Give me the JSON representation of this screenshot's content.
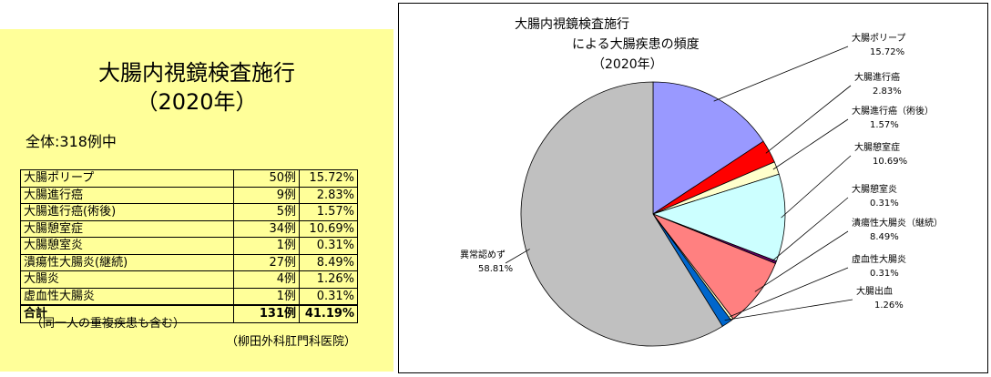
{
  "table_panel": {
    "title": "大腸内視鏡検査施行",
    "subtitle": "（2020年）",
    "summary": "全体:318例中",
    "rows": [
      [
        "大腸ポリープ",
        "50例",
        "15.72%"
      ],
      [
        "大腸進行癌",
        "9例",
        "2.83%"
      ],
      [
        "大腸進行癌(術後)",
        "5例",
        "1.57%"
      ],
      [
        "大腸憩室症",
        "34例",
        "10.69%"
      ],
      [
        "大腸憩室炎",
        "1例",
        "0.31%"
      ],
      [
        "潰瘍性大腸炎(継続)",
        "27例",
        "8.49%"
      ],
      [
        "大腸炎",
        "4例",
        "1.26%"
      ],
      [
        "虚血性大腸炎",
        "1例",
        "0.31%"
      ]
    ],
    "total": [
      "合計",
      "131例",
      "41.19%"
    ],
    "note": "（同一人の重複疾患も含む）",
    "source": "（柳田外科肛門科医院）"
  },
  "chart_data": {
    "type": "pie",
    "title": [
      "大腸内視鏡検査施行",
      "による大腸疾患の頻度",
      "（2020年）"
    ],
    "categories": [
      "大腸ポリープ",
      "大腸進行癌",
      "大腸進行癌（術後）",
      "大腸憩室症",
      "大腸憩室炎",
      "潰瘍性大腸炎（継続）",
      "虚血性大腸炎",
      "大腸出血",
      "異常認めず"
    ],
    "values": [
      15.72,
      2.83,
      1.57,
      10.69,
      0.31,
      8.49,
      0.31,
      1.26,
      58.81
    ],
    "value_labels": [
      "15.72%",
      "2.83%",
      "1.57%",
      "10.69%",
      "0.31%",
      "8.49%",
      "0.31%",
      "1.26%",
      "58.81%"
    ],
    "colors": [
      "#9999ff",
      "#ff0000",
      "#ffffcc",
      "#ccffff",
      "#660066",
      "#ff8080",
      "#ffffcc",
      "#0066cc",
      "#c0c0c0"
    ]
  }
}
